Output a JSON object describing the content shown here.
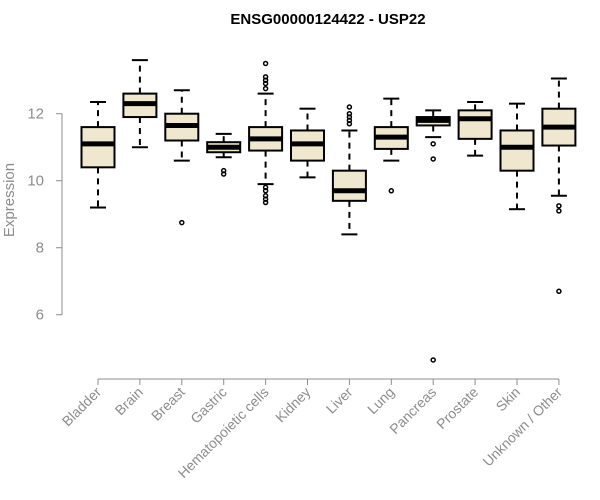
{
  "chart_data": {
    "type": "box",
    "title": "ENSG00000124422 - USP22",
    "xlabel": "",
    "ylabel": "Expression",
    "ylim": [
      4.5,
      14.2
    ],
    "yticks": [
      6,
      8,
      10,
      12
    ],
    "grid": false,
    "legend": "none",
    "box_fill": "#efe8cf",
    "categories": [
      "Bladder",
      "Brain",
      "Breast",
      "Gastric",
      "Hematopoietic cells",
      "Kidney",
      "Liver",
      "Lung",
      "Pancreas",
      "Prostate",
      "Skin",
      "Unknown / Other"
    ],
    "boxes": [
      {
        "whisker_low": 9.2,
        "q1": 10.4,
        "median": 11.1,
        "q3": 11.6,
        "whisker_high": 12.35,
        "outliers": []
      },
      {
        "whisker_low": 11.0,
        "q1": 11.9,
        "median": 12.3,
        "q3": 12.6,
        "whisker_high": 13.6,
        "outliers": []
      },
      {
        "whisker_low": 10.6,
        "q1": 11.2,
        "median": 11.65,
        "q3": 12.0,
        "whisker_high": 12.7,
        "outliers": [
          8.75
        ]
      },
      {
        "whisker_low": 10.7,
        "q1": 10.85,
        "median": 11.0,
        "q3": 11.15,
        "whisker_high": 11.4,
        "outliers": [
          10.2,
          10.3
        ]
      },
      {
        "whisker_low": 9.9,
        "q1": 10.9,
        "median": 11.25,
        "q3": 11.6,
        "whisker_high": 12.6,
        "outliers": [
          9.35,
          9.45,
          9.55,
          9.7,
          9.8,
          12.75,
          12.9,
          13.0,
          13.1,
          13.5
        ]
      },
      {
        "whisker_low": 10.1,
        "q1": 10.6,
        "median": 11.1,
        "q3": 11.5,
        "whisker_high": 12.15,
        "outliers": []
      },
      {
        "whisker_low": 8.4,
        "q1": 9.4,
        "median": 9.7,
        "q3": 10.3,
        "whisker_high": 11.5,
        "outliers": [
          11.7,
          11.8,
          11.9,
          12.0,
          12.2
        ]
      },
      {
        "whisker_low": 10.6,
        "q1": 10.95,
        "median": 11.3,
        "q3": 11.6,
        "whisker_high": 12.45,
        "outliers": [
          9.7
        ]
      },
      {
        "whisker_low": 11.3,
        "q1": 11.65,
        "median": 11.8,
        "q3": 11.9,
        "whisker_high": 12.1,
        "outliers": [
          10.65,
          11.1,
          4.65
        ]
      },
      {
        "whisker_low": 10.75,
        "q1": 11.25,
        "median": 11.85,
        "q3": 12.1,
        "whisker_high": 12.35,
        "outliers": []
      },
      {
        "whisker_low": 9.15,
        "q1": 10.3,
        "median": 11.0,
        "q3": 11.5,
        "whisker_high": 12.3,
        "outliers": []
      },
      {
        "whisker_low": 9.55,
        "q1": 11.05,
        "median": 11.6,
        "q3": 12.15,
        "whisker_high": 13.05,
        "outliers": [
          9.1,
          9.25,
          6.7
        ]
      }
    ]
  }
}
